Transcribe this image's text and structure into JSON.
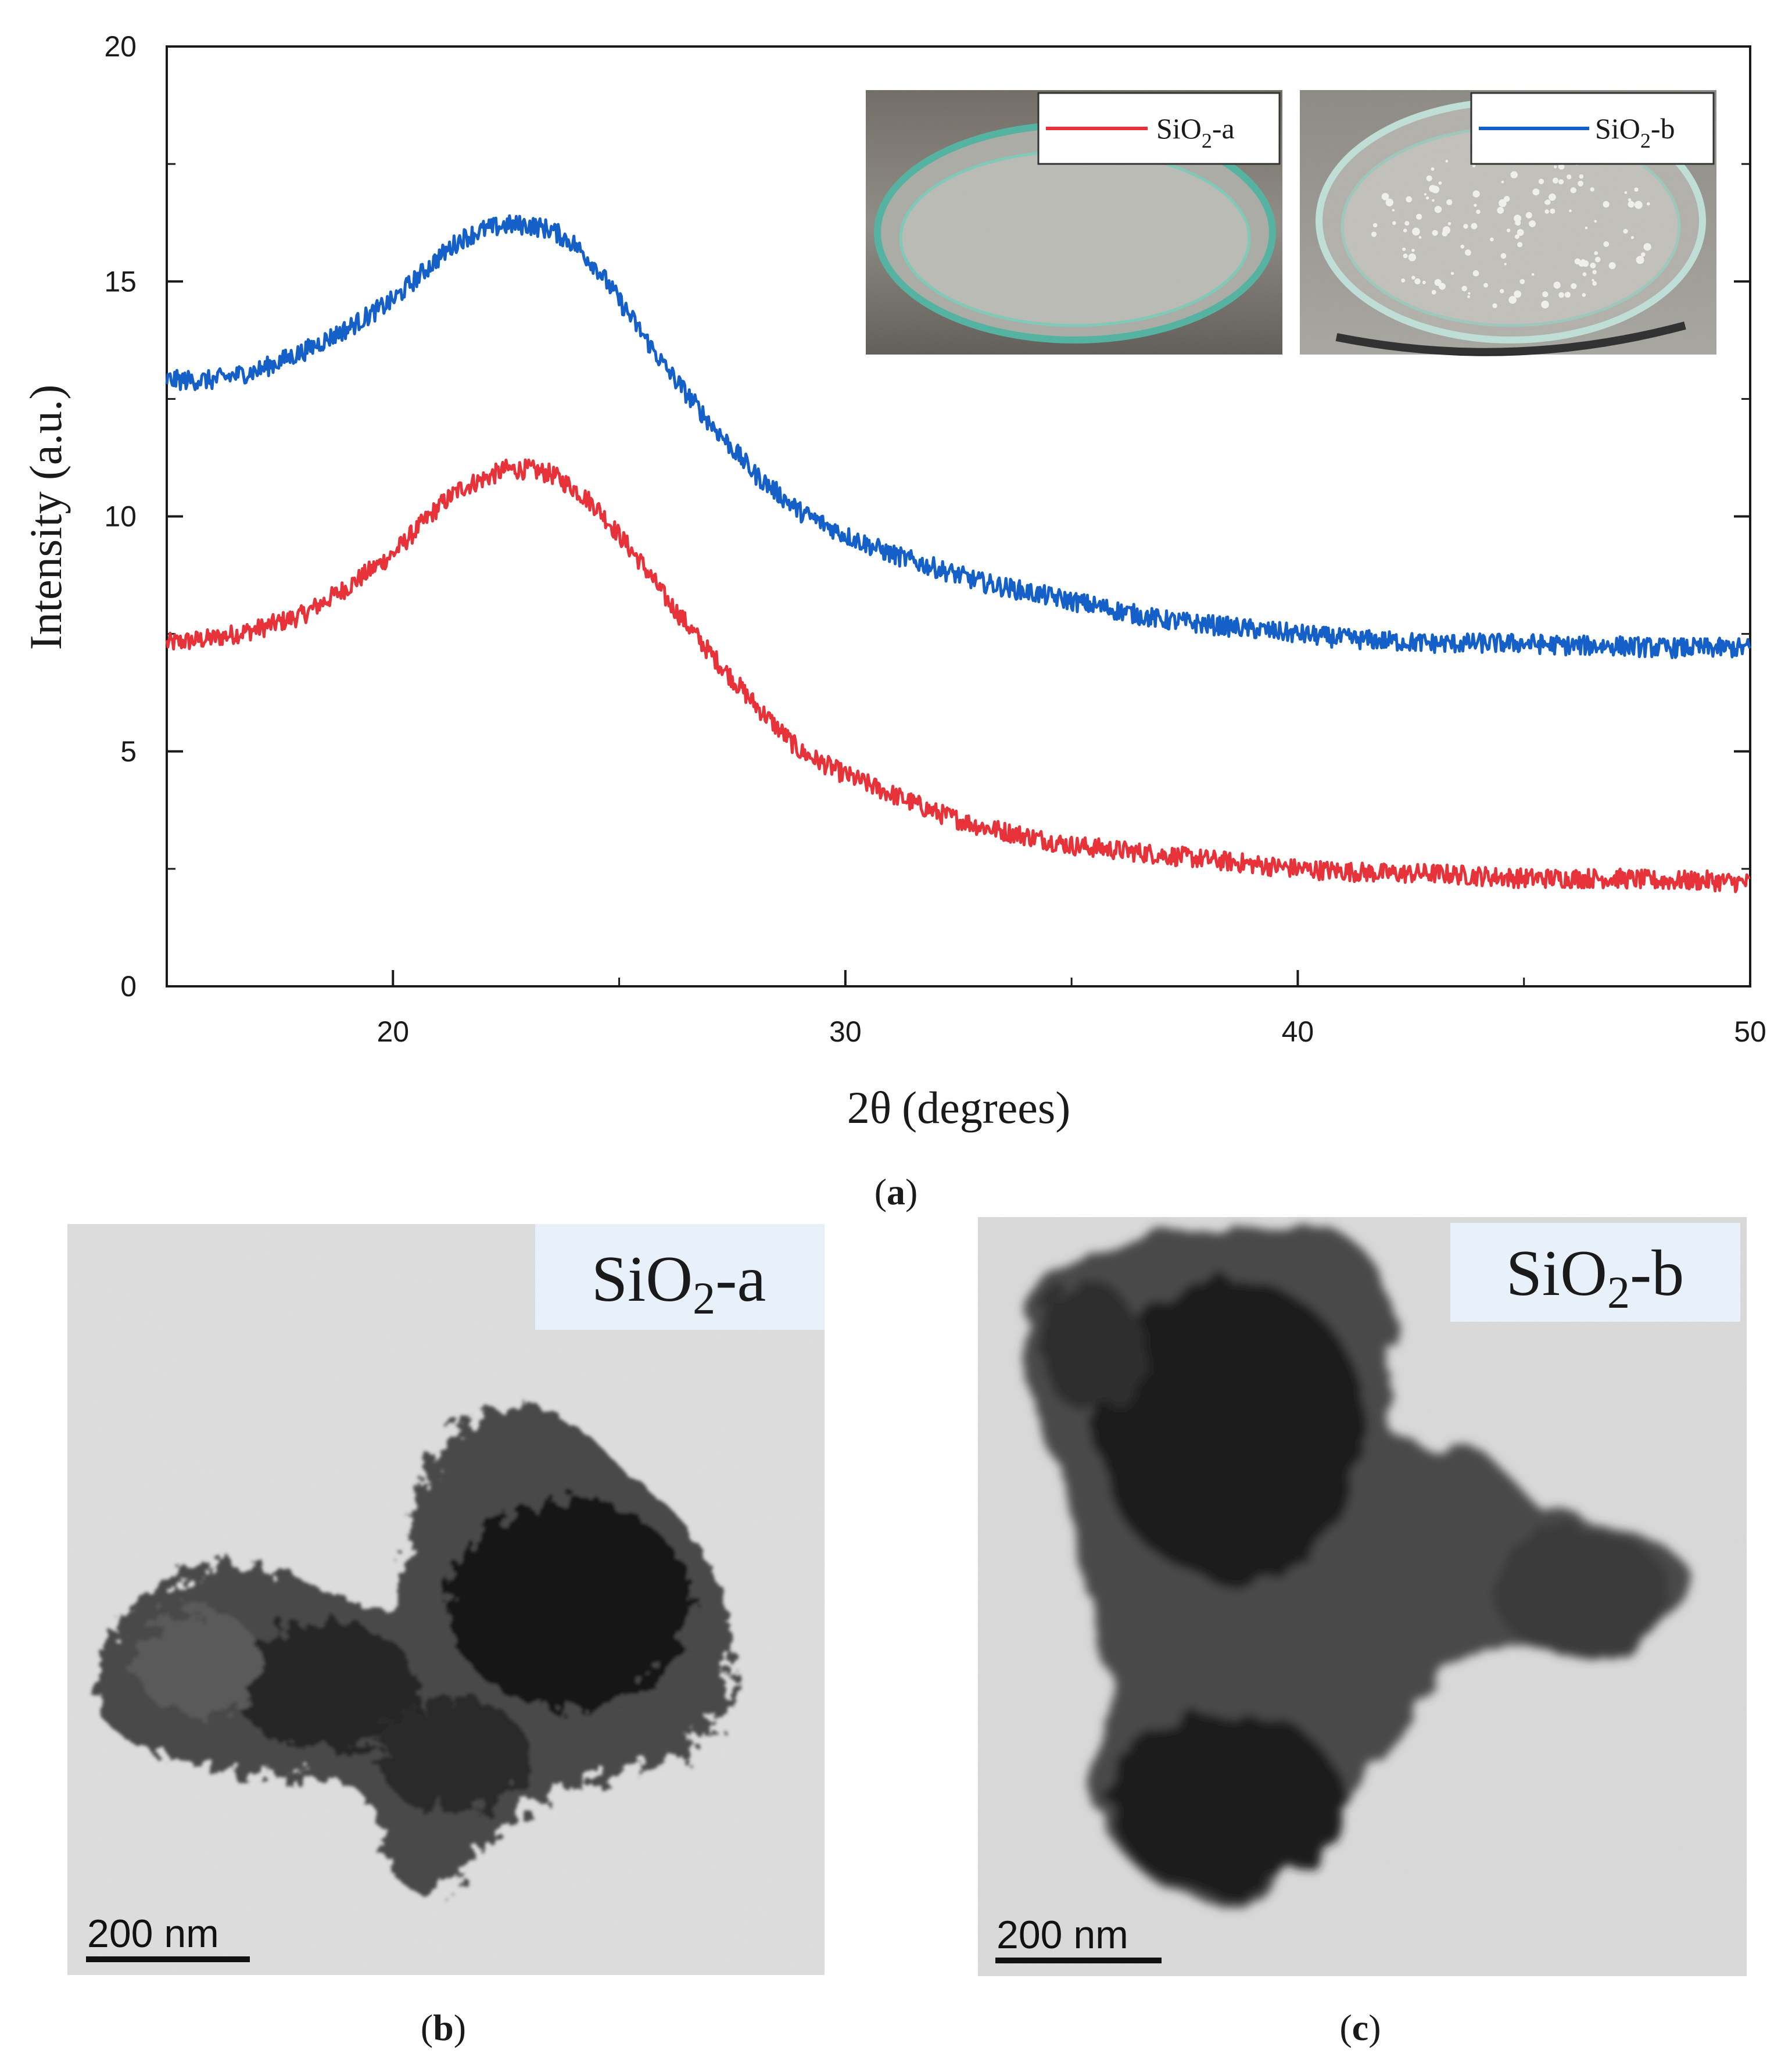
{
  "chart_data": {
    "type": "line",
    "xlabel_main": "2θ",
    "xlabel_unit": "(degrees)",
    "ylabel": "Intensity (a.u.)",
    "xlim": [
      15,
      50
    ],
    "ylim": [
      0,
      20
    ],
    "x_ticks": [
      20,
      30,
      40,
      50
    ],
    "y_ticks": [
      0,
      5,
      10,
      15,
      20
    ],
    "series": [
      {
        "name": "SiO2-a",
        "color": "#e8323a",
        "x": [
          15,
          16,
          17,
          18,
          19,
          20,
          21,
          21.5,
          22,
          22.5,
          23,
          23.5,
          24,
          24.5,
          25,
          25.5,
          26,
          27,
          28,
          29,
          30,
          31,
          32,
          33,
          34,
          35,
          36,
          37,
          38,
          39,
          40,
          41,
          42,
          43,
          44,
          45,
          46,
          47,
          48,
          49,
          50
        ],
        "y": [
          7.3,
          7.4,
          7.6,
          7.9,
          8.5,
          9.2,
          10.2,
          10.6,
          10.8,
          11.0,
          11.0,
          10.9,
          10.6,
          10.2,
          9.6,
          9.0,
          8.3,
          7.1,
          6.0,
          5.0,
          4.5,
          4.1,
          3.7,
          3.4,
          3.2,
          3.0,
          2.9,
          2.8,
          2.7,
          2.6,
          2.5,
          2.45,
          2.4,
          2.4,
          2.35,
          2.3,
          2.3,
          2.3,
          2.25,
          2.25,
          2.2
        ]
      },
      {
        "name": "SiO2-b",
        "color": "#1560c8",
        "x": [
          15,
          16,
          17,
          18,
          19,
          20,
          21,
          21.5,
          22,
          22.5,
          23,
          23.5,
          24,
          24.5,
          25,
          25.5,
          26,
          27,
          28,
          29,
          30,
          31,
          32,
          33,
          34,
          35,
          36,
          37,
          38,
          39,
          40,
          41,
          42,
          43,
          44,
          45,
          46,
          47,
          48,
          49,
          50
        ],
        "y": [
          12.9,
          12.9,
          13.1,
          13.5,
          14.0,
          14.6,
          15.5,
          15.9,
          16.1,
          16.2,
          16.2,
          16.1,
          15.8,
          15.3,
          14.6,
          13.9,
          13.2,
          12.0,
          10.9,
          10.1,
          9.6,
          9.2,
          8.9,
          8.6,
          8.4,
          8.2,
          8.0,
          7.8,
          7.7,
          7.6,
          7.5,
          7.4,
          7.35,
          7.3,
          7.3,
          7.3,
          7.25,
          7.25,
          7.2,
          7.2,
          7.2
        ]
      }
    ]
  },
  "legend": {
    "a": {
      "base": "SiO",
      "sub": "2",
      "suffix": "-a"
    },
    "b": {
      "base": "SiO",
      "sub": "2",
      "suffix": "-b"
    }
  },
  "tem": {
    "left": {
      "base": "SiO",
      "sub": "2",
      "suffix": "-a",
      "scale": "200 nm"
    },
    "right": {
      "base": "SiO",
      "sub": "2",
      "suffix": "-b",
      "scale": "200 nm"
    }
  },
  "captions": {
    "a": {
      "open": "(",
      "letter": "a",
      "close": ")"
    },
    "b": {
      "open": "(",
      "letter": "b",
      "close": ")"
    },
    "c": {
      "open": "(",
      "letter": "c",
      "close": ")"
    }
  },
  "colors": {
    "tem_background": "#dedede",
    "tag_background": "#e8f0fa"
  }
}
